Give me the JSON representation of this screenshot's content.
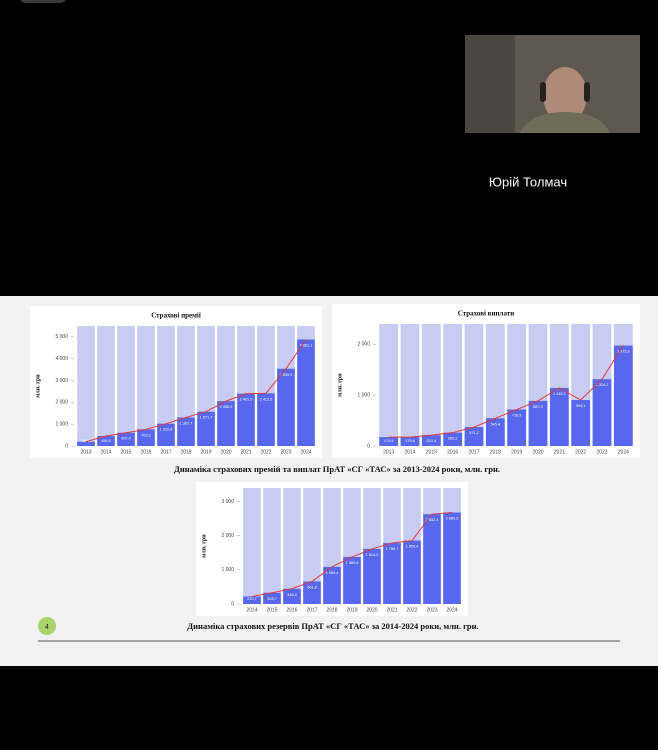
{
  "call": {
    "participant_name": "Юрій Толмач"
  },
  "slide": {
    "page_number": "4",
    "caption_1": "Динаміка страхових премій та виплат ПрАТ «СГ «ТАС» за 2013-2024 роки, млн. грн.",
    "caption_2": "Динаміка страхових резервів ПрАТ «СГ «ТАС» за 2014-2024 роки, млн. грн.",
    "charts": [
      {
        "type": "bar",
        "title": "Страхові премії",
        "y_label": "млн. грн",
        "categories": [
          "2013",
          "2014",
          "2015",
          "2016",
          "2017",
          "2018",
          "2019",
          "2020",
          "2021",
          "2022",
          "2023",
          "2024"
        ],
        "values": [
          196.3,
          456.5,
          607.4,
          763.2,
          1022.6,
          1307.7,
          1571.7,
          2056.5,
          2401.5,
          2412.6,
          3539.9,
          4881.1
        ],
        "value_labels": [
          "196,3",
          "456,5",
          "607,4",
          "763,2",
          "1 022,6",
          "1 307,7",
          "1 571,7",
          "2 056,5",
          "2 401,5",
          "2 412,6",
          "3 539,9",
          "4 881,1"
        ],
        "ylim": [
          0,
          5500
        ],
        "yticks": [
          0,
          {
            "value": 1000,
            "label": "1 000"
          },
          {
            "value": 2000,
            "label": "2 000"
          },
          {
            "value": 3000,
            "label": "3 000"
          },
          {
            "value": 4000,
            "label": "4 000"
          },
          {
            "value": 5000,
            "label": "5 000"
          }
        ],
        "color": "#5767ee",
        "background_color": "#c9ccf2",
        "line_color": "#e03a3a"
      },
      {
        "type": "bar",
        "title": "Страхові виплати",
        "y_label": "млн. грн",
        "categories": [
          "2013",
          "2014",
          "2015",
          "2016",
          "2017",
          "2018",
          "2019",
          "2020",
          "2021",
          "2022",
          "2023",
          "2024"
        ],
        "values": [
          174.9,
          175.6,
          213.4,
          262.2,
          371.2,
          545.4,
          716.9,
          887.3,
          1142.0,
          904.1,
          1314.2,
          1975.3
        ],
        "value_labels": [
          "174,9",
          "175,6",
          "213,4",
          "262,2",
          "371,2",
          "545,4",
          "716,9",
          "887,3",
          "1 142,0",
          "904,1",
          "1 314,2",
          "1 975,3"
        ],
        "ylim": [
          0,
          2400
        ],
        "yticks": [
          0,
          {
            "value": 1000,
            "label": "1 000"
          },
          {
            "value": 2000,
            "label": "2 000"
          }
        ],
        "color": "#5767ee",
        "background_color": "#c9ccf2",
        "line_color": "#e03a3a"
      },
      {
        "type": "bar",
        "y_label": "млн. грн",
        "categories": [
          "2014",
          "2015",
          "2016",
          "2017",
          "2018",
          "2019",
          "2020",
          "2021",
          "2022",
          "2023",
          "2024"
        ],
        "values": [
          220.7,
          328.7,
          446.4,
          661.8,
          1089.4,
          1380.6,
          1614.2,
          1786.7,
          1859.4,
          2632.4,
          2680.5
        ],
        "value_labels": [
          "220,7",
          "328,7",
          "446,4",
          "661,8",
          "1 089,4",
          "1 380,6",
          "1 614,2",
          "1 786,7",
          "1 859,4",
          "2 632,4",
          "2 680,5"
        ],
        "ylim": [
          0,
          3400
        ],
        "yticks": [
          0,
          {
            "value": 1000,
            "label": "1 000"
          },
          {
            "value": 2000,
            "label": "2 000"
          },
          {
            "value": 3000,
            "label": "3 000"
          }
        ],
        "color": "#5767ee",
        "background_color": "#c9ccf2",
        "line_color": "#e03a3a"
      }
    ]
  }
}
